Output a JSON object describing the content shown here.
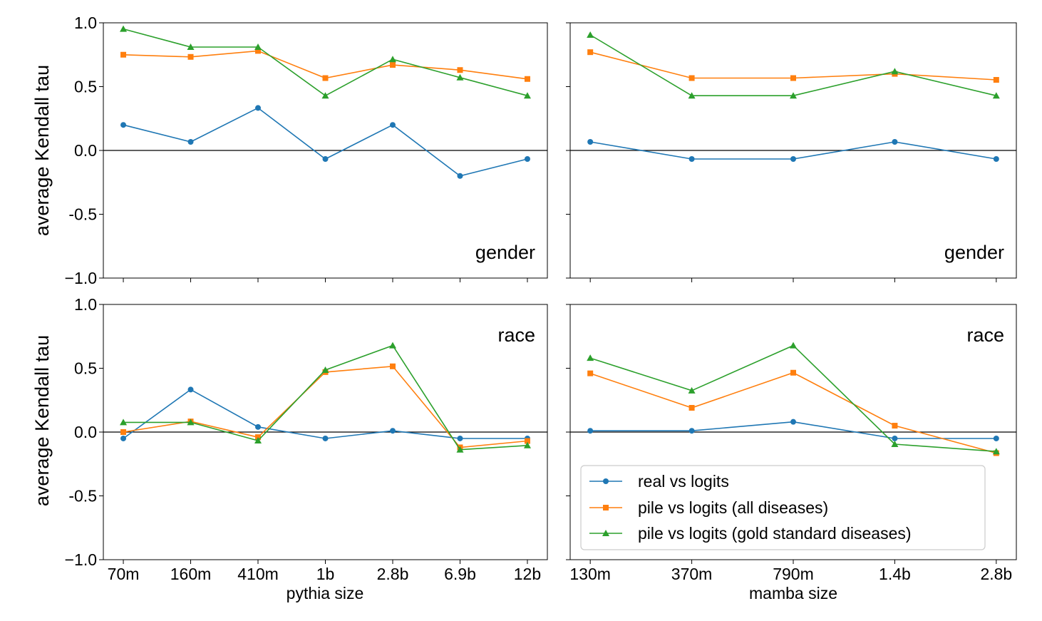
{
  "chart_data": [
    {
      "type": "line",
      "panel": "top-left",
      "annotation": "gender",
      "ylabel": "average Kendall tau",
      "xlabel": "",
      "ylim": [
        -1.0,
        1.0
      ],
      "yticks": [
        "1.0",
        "0.5",
        "0.0",
        "-0.5",
        "−1.0"
      ],
      "categories": [
        "70m",
        "160m",
        "410m",
        "1b",
        "2.8b",
        "6.9b",
        "12b"
      ],
      "series": [
        {
          "name": "real vs logits",
          "values": [
            0.2,
            0.067,
            0.333,
            -0.067,
            0.2,
            -0.2,
            -0.067
          ]
        },
        {
          "name": "pile vs logits (all diseases)",
          "values": [
            0.75,
            0.733,
            0.78,
            0.567,
            0.67,
            0.63,
            0.56
          ]
        },
        {
          "name": "pile vs logits (gold standard diseases)",
          "values": [
            0.952,
            0.81,
            0.81,
            0.429,
            0.714,
            0.571,
            0.429
          ]
        }
      ]
    },
    {
      "type": "line",
      "panel": "top-right",
      "annotation": "gender",
      "ylabel": "",
      "xlabel": "",
      "ylim": [
        -1.0,
        1.0
      ],
      "categories": [
        "130m",
        "370m",
        "790m",
        "1.4b",
        "2.8b"
      ],
      "series": [
        {
          "name": "real vs logits",
          "values": [
            0.067,
            -0.067,
            -0.067,
            0.067,
            -0.067
          ]
        },
        {
          "name": "pile vs logits (all diseases)",
          "values": [
            0.77,
            0.567,
            0.567,
            0.6,
            0.553
          ]
        },
        {
          "name": "pile vs logits (gold standard diseases)",
          "values": [
            0.905,
            0.429,
            0.429,
            0.619,
            0.429
          ]
        }
      ]
    },
    {
      "type": "line",
      "panel": "bottom-left",
      "annotation": "race",
      "ylabel": "average Kendall tau",
      "xlabel": "pythia size",
      "ylim": [
        -1.0,
        1.0
      ],
      "yticks": [
        "1.0",
        "0.5",
        "0.0",
        "-0.5",
        "−1.0"
      ],
      "categories": [
        "70m",
        "160m",
        "410m",
        "1b",
        "2.8b",
        "6.9b",
        "12b"
      ],
      "series": [
        {
          "name": "real vs logits",
          "values": [
            -0.05,
            0.333,
            0.04,
            -0.05,
            0.01,
            -0.05,
            -0.05
          ]
        },
        {
          "name": "pile vs logits (all diseases)",
          "values": [
            0.0,
            0.083,
            -0.04,
            0.47,
            0.515,
            -0.12,
            -0.07
          ]
        },
        {
          "name": "pile vs logits (gold standard diseases)",
          "values": [
            0.076,
            0.076,
            -0.067,
            0.486,
            0.678,
            -0.138,
            -0.105
          ]
        }
      ]
    },
    {
      "type": "line",
      "panel": "bottom-right",
      "annotation": "race",
      "ylabel": "",
      "xlabel": "mamba size",
      "ylim": [
        -1.0,
        1.0
      ],
      "categories": [
        "130m",
        "370m",
        "790m",
        "1.4b",
        "2.8b"
      ],
      "series": [
        {
          "name": "real vs logits",
          "values": [
            0.01,
            0.01,
            0.08,
            -0.05,
            -0.05
          ]
        },
        {
          "name": "pile vs logits (all diseases)",
          "values": [
            0.46,
            0.19,
            0.465,
            0.05,
            -0.165
          ]
        },
        {
          "name": "pile vs logits (gold standard diseases)",
          "values": [
            0.58,
            0.325,
            0.678,
            -0.095,
            -0.152
          ]
        }
      ],
      "legend_position": "lower-right"
    }
  ],
  "legend": {
    "entries": [
      {
        "label": "real vs logits",
        "color": "#1f77b4",
        "marker": "circle"
      },
      {
        "label": "pile vs logits (all diseases)",
        "color": "#ff7f0e",
        "marker": "square"
      },
      {
        "label": "pile vs logits (gold standard diseases)",
        "color": "#2ca02c",
        "marker": "triangle"
      }
    ]
  },
  "colors": {
    "series": [
      "#1f77b4",
      "#ff7f0e",
      "#2ca02c"
    ],
    "zero_line": "#000000"
  }
}
